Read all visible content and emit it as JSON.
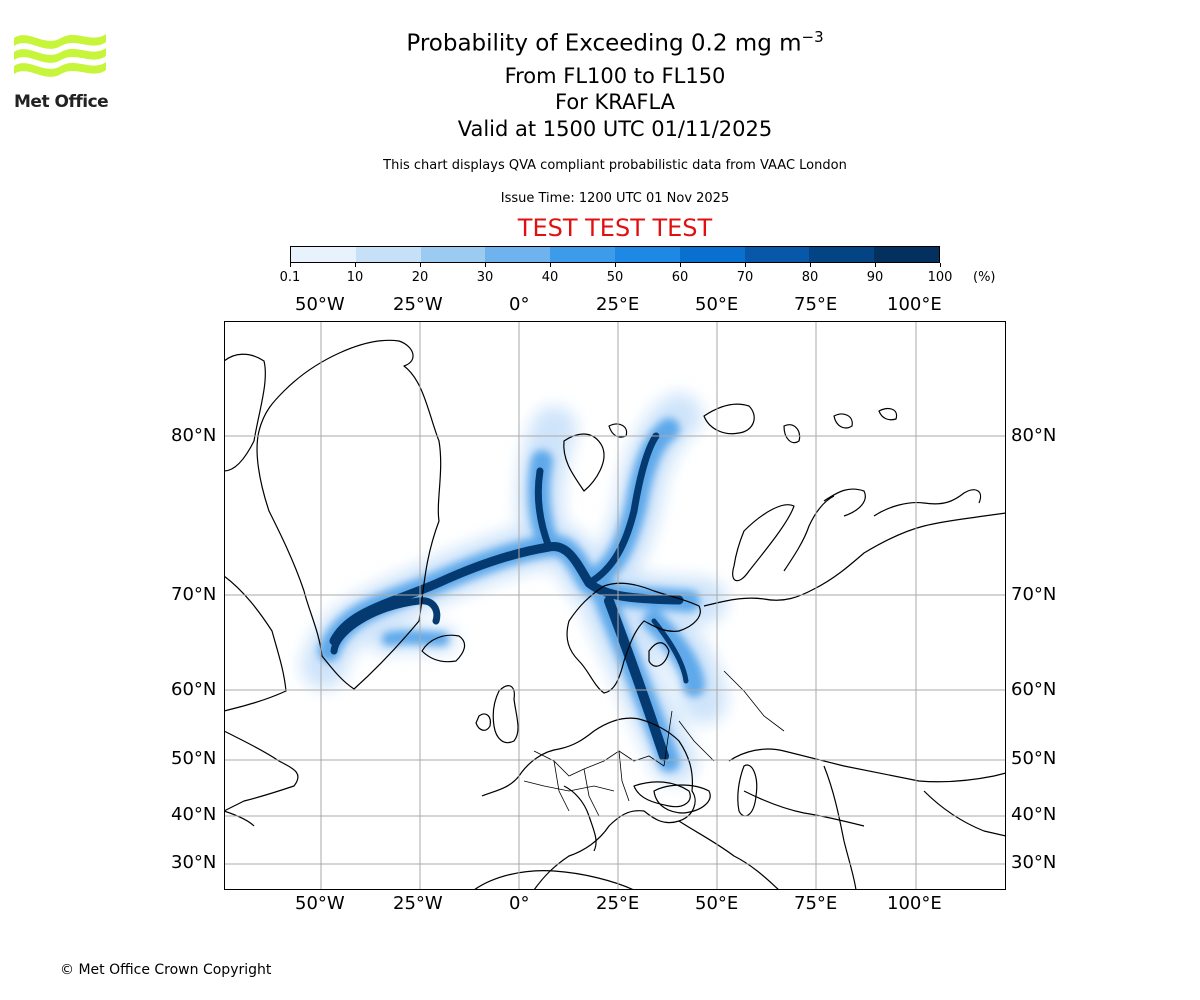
{
  "logo": {
    "text": "Met Office",
    "color": "#c6f53a"
  },
  "title": {
    "main": "Probability of Exceeding 0.2 mg m",
    "main_sup": "−3",
    "levels": "From FL100 to FL150",
    "volcano": "For KRAFLA",
    "valid": "Valid at 1500 UTC 01/11/2025",
    "note": "This chart displays QVA compliant probabilistic data from VAAC London",
    "issue": "Issue Time: 1200 UTC 01 Nov 2025",
    "test_banner": "TEST TEST TEST"
  },
  "colorbar": {
    "labels": [
      "0.1",
      "10",
      "20",
      "30",
      "40",
      "50",
      "60",
      "70",
      "80",
      "90",
      "100"
    ],
    "unit": "(%)",
    "colors": [
      "#e8f2fd",
      "#c6e0f8",
      "#9ccbf2",
      "#6fb3ee",
      "#3d9ce9",
      "#1e88e5",
      "#0a70cf",
      "#0758a8",
      "#044384",
      "#03305f"
    ]
  },
  "map": {
    "lon_labels": [
      "50°W",
      "25°W",
      "0°",
      "25°E",
      "50°E",
      "75°E",
      "100°E"
    ],
    "lat_labels": [
      "80°N",
      "70°N",
      "60°N",
      "50°N",
      "40°N",
      "30°N"
    ]
  },
  "footer": {
    "copyright": "© Met Office Crown Copyright"
  }
}
